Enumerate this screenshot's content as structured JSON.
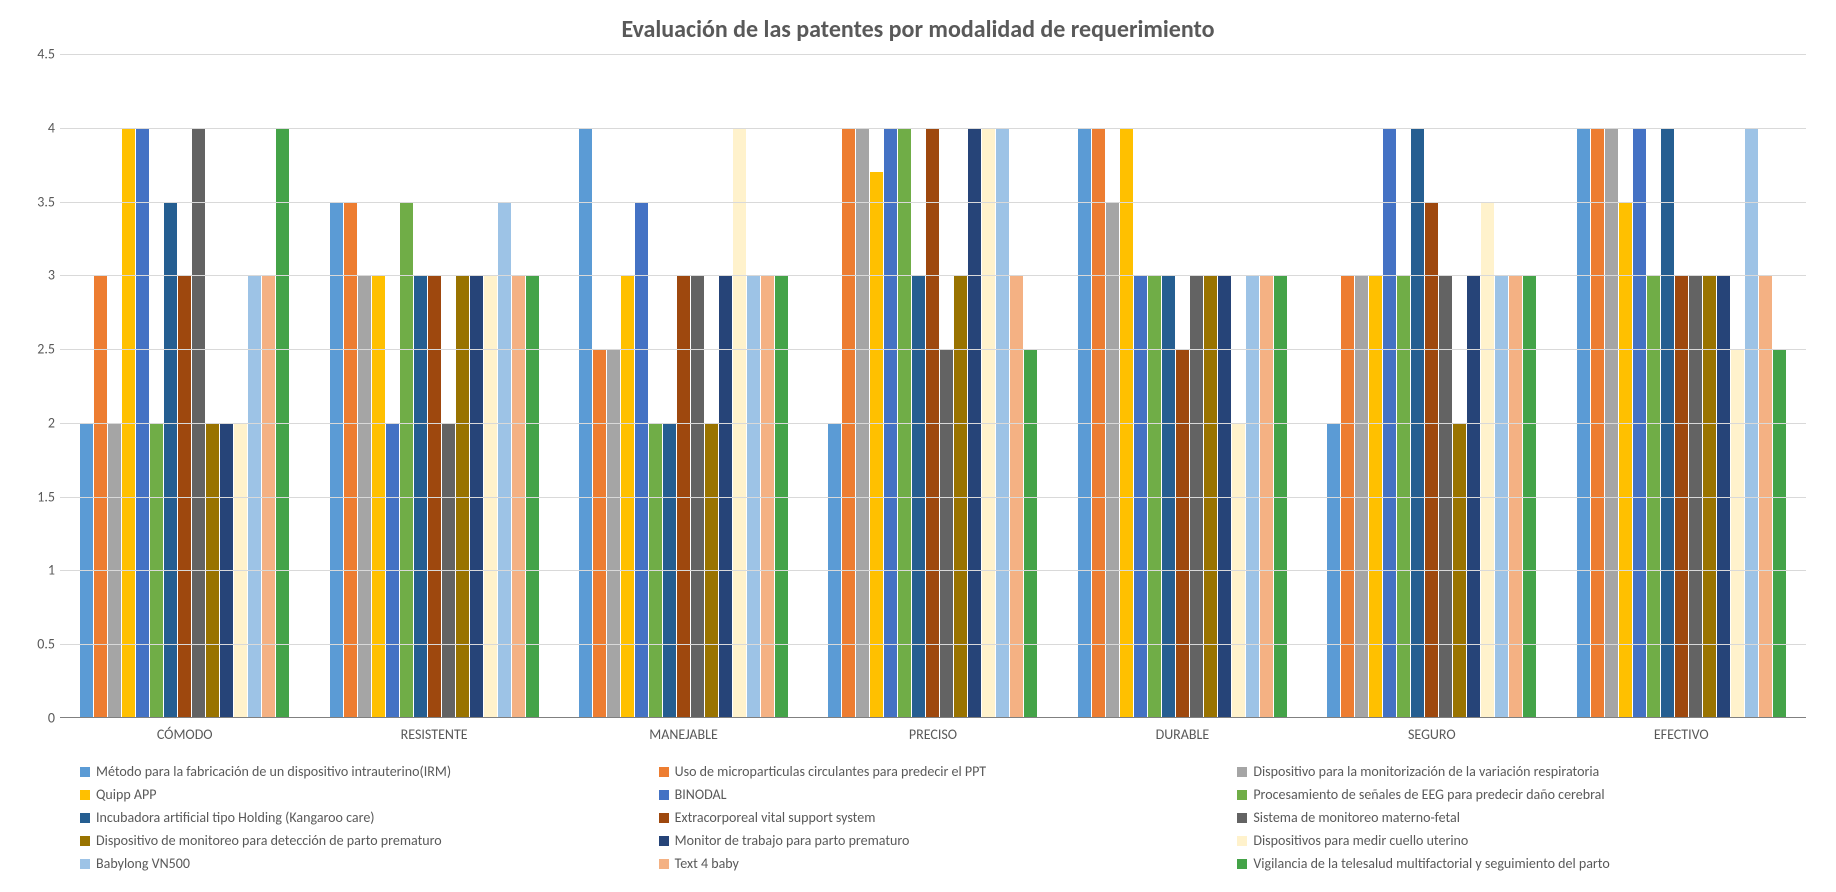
{
  "title": "Evaluación de las patentes por modalidad de requerimiento",
  "ylim": [
    0,
    4.5
  ],
  "ytick_step": 0.5,
  "yticks": [
    "0",
    "0.5",
    "1",
    "1.5",
    "2",
    "2.5",
    "3",
    "3.5",
    "4",
    "4.5"
  ],
  "categories": [
    "CÓMODO",
    "RESISTENTE",
    "MANEJABLE",
    "PRECISO",
    "DURABLE",
    "SEGURO",
    "EFECTIVO"
  ],
  "series": [
    {
      "name": "Método para la fabricación de un dispositivo intrauterino(IRM)",
      "color": "#5b9bd5",
      "values": [
        2,
        3.5,
        4,
        2,
        4,
        2,
        4
      ]
    },
    {
      "name": "Uso de microparticulas circulantes para predecir el PPT",
      "color": "#ed7d31",
      "values": [
        3,
        3.5,
        2.5,
        4,
        4,
        3,
        4
      ]
    },
    {
      "name": "Dispositivo para la monitorización de la variación respiratoria",
      "color": "#a5a5a5",
      "values": [
        2,
        3,
        2.5,
        4,
        3.5,
        3,
        4
      ]
    },
    {
      "name": "Quipp APP",
      "color": "#ffc000",
      "values": [
        4,
        3,
        3,
        3.7,
        4,
        3,
        3.5
      ]
    },
    {
      "name": "BINODAL",
      "color": "#4472c4",
      "values": [
        4,
        2,
        3.5,
        4,
        3,
        4,
        4
      ]
    },
    {
      "name": "Procesamiento de señales de EEG para predecir daño cerebral",
      "color": "#70ad47",
      "values": [
        2,
        3.5,
        2,
        4,
        3,
        3,
        3
      ]
    },
    {
      "name": "Incubadora artificial tipo Holding (Kangaroo care)",
      "color": "#255e91",
      "values": [
        3.5,
        3,
        2,
        3,
        3,
        4,
        4
      ]
    },
    {
      "name": "Extracorporeal vital support system",
      "color": "#9e480e",
      "values": [
        3,
        3,
        3,
        4,
        2.5,
        3.5,
        3
      ]
    },
    {
      "name": "Sistema de monitoreo materno-fetal",
      "color": "#636363",
      "values": [
        4,
        2,
        3,
        2.5,
        3,
        3,
        3
      ]
    },
    {
      "name": "Dispositivo de monitoreo para detección de parto prematuro",
      "color": "#997300",
      "values": [
        2,
        3,
        2,
        3,
        3,
        2,
        3
      ]
    },
    {
      "name": "Monitor de trabajo para parto prematuro",
      "color": "#264478",
      "values": [
        2,
        3,
        3,
        4,
        3,
        3,
        3
      ]
    },
    {
      "name": "Dispositivos para medir cuello uterino",
      "color": "#fff2cc",
      "values": [
        2,
        3,
        4,
        4,
        2,
        3.5,
        2.5
      ]
    },
    {
      "name": "Babylong  VN500",
      "color": "#9dc3e6",
      "values": [
        3,
        3.5,
        3,
        4,
        3,
        3,
        4
      ]
    },
    {
      "name": "Text 4 baby",
      "color": "#f4b183",
      "values": [
        3,
        3,
        3,
        3,
        3,
        3,
        3
      ]
    },
    {
      "name": "Vigilancia de la telesalud multifactorial y seguimiento del parto",
      "color": "#44a348",
      "values": [
        4,
        3,
        3,
        2.5,
        3,
        3,
        2.5
      ]
    }
  ],
  "grid_color": "#d9d9d9",
  "background_color": "#ffffff",
  "title_fontsize": 24,
  "label_fontsize": 14
}
